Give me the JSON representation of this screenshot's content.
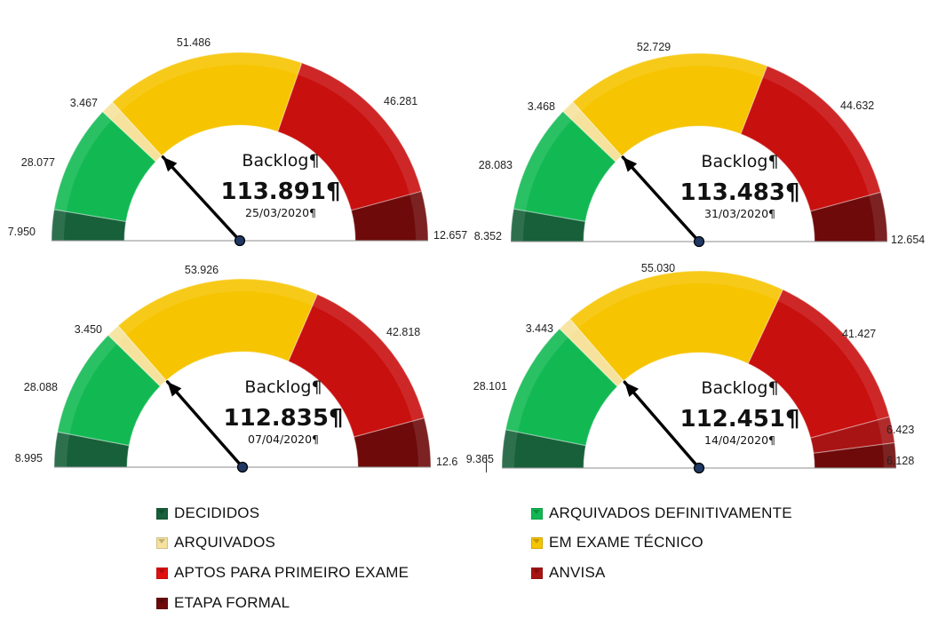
{
  "colors": {
    "decididos": "#17603a",
    "arquivados_definitivamente": "#12b953",
    "arquivados": "#f6e29c",
    "em_exame_tecnico": "#f6c400",
    "aptos_primeiro_exame": "#c8100f",
    "anvisa": "#a81414",
    "etapa_formal": "#6e0a0a"
  },
  "legend": [
    {
      "label": "DECIDIDOS",
      "color": "#17603a"
    },
    {
      "label": "ARQUIVADOS DEFINITIVAMENTE",
      "color": "#12b953"
    },
    {
      "label": "ARQUIVADOS",
      "color": "#f6e29c"
    },
    {
      "label": "EM EXAME TÉCNICO",
      "color": "#f6c400"
    },
    {
      "label": "APTOS PARA PRIMEIRO EXAME",
      "color": "#e21010"
    },
    {
      "label": "ANVISA",
      "color": "#a81414"
    },
    {
      "label": "ETAPA FORMAL",
      "color": "#6e0a0a"
    }
  ],
  "chart_data": [
    {
      "type": "gauge",
      "title": "Backlog¶",
      "total": "113.891¶",
      "date": "25/03/2020¶",
      "segments": [
        {
          "category": "DECIDIDOS",
          "value": 7950,
          "label": "7.950"
        },
        {
          "category": "ARQUIVADOS DEFINITIVAMENTE",
          "value": 28077,
          "label": "28.077"
        },
        {
          "category": "ARQUIVADOS",
          "value": 3467,
          "label": "3.467"
        },
        {
          "category": "EM EXAME TÉCNICO",
          "value": 51486,
          "label": "51.486"
        },
        {
          "category": "APTOS PARA PRIMEIRO EXAME",
          "value": 46281,
          "label": "46.281"
        },
        {
          "category": "ETAPA FORMAL",
          "value": 12657,
          "label": "12.657"
        }
      ]
    },
    {
      "type": "gauge",
      "title": "Backlog¶",
      "total": "113.483¶",
      "date": "31/03/2020¶",
      "segments": [
        {
          "category": "DECIDIDOS",
          "value": 8352,
          "label": "8.352"
        },
        {
          "category": "ARQUIVADOS DEFINITIVAMENTE",
          "value": 28083,
          "label": "28.083"
        },
        {
          "category": "ARQUIVADOS",
          "value": 3468,
          "label": "3.468"
        },
        {
          "category": "EM EXAME TÉCNICO",
          "value": 52729,
          "label": "52.729"
        },
        {
          "category": "APTOS PARA PRIMEIRO EXAME",
          "value": 44632,
          "label": "44.632"
        },
        {
          "category": "ETAPA FORMAL",
          "value": 12654,
          "label": "12.654"
        }
      ]
    },
    {
      "type": "gauge",
      "title": "Backlog¶",
      "total": "112.835¶",
      "date": "07/04/2020¶",
      "segments": [
        {
          "category": "DECIDIDOS",
          "value": 8995,
          "label": "8.995"
        },
        {
          "category": "ARQUIVADOS DEFINITIVAMENTE",
          "value": 28088,
          "label": "28.088"
        },
        {
          "category": "ARQUIVADOS",
          "value": 3450,
          "label": "3.450"
        },
        {
          "category": "EM EXAME TÉCNICO",
          "value": 53926,
          "label": "53.926"
        },
        {
          "category": "APTOS PARA PRIMEIRO EXAME",
          "value": 42818,
          "label": "42.818"
        },
        {
          "category": "ETAPA FORMAL",
          "value": 12600,
          "label": "12.6"
        }
      ]
    },
    {
      "type": "gauge",
      "title": "Backlog¶",
      "total": "112.451¶",
      "date": "14/04/2020¶",
      "segments": [
        {
          "category": "DECIDIDOS",
          "value": 9365,
          "label": "9.365"
        },
        {
          "category": "ARQUIVADOS DEFINITIVAMENTE",
          "value": 28101,
          "label": "28.101"
        },
        {
          "category": "ARQUIVADOS",
          "value": 3443,
          "label": "3.443"
        },
        {
          "category": "EM EXAME TÉCNICO",
          "value": 55030,
          "label": "55.030"
        },
        {
          "category": "APTOS PARA PRIMEIRO EXAME",
          "value": 41427,
          "label": "41.427"
        },
        {
          "category": "ANVISA",
          "value": 6423,
          "label": "6.423"
        },
        {
          "category": "ETAPA FORMAL",
          "value": 6128,
          "label": "6.128"
        }
      ]
    }
  ]
}
